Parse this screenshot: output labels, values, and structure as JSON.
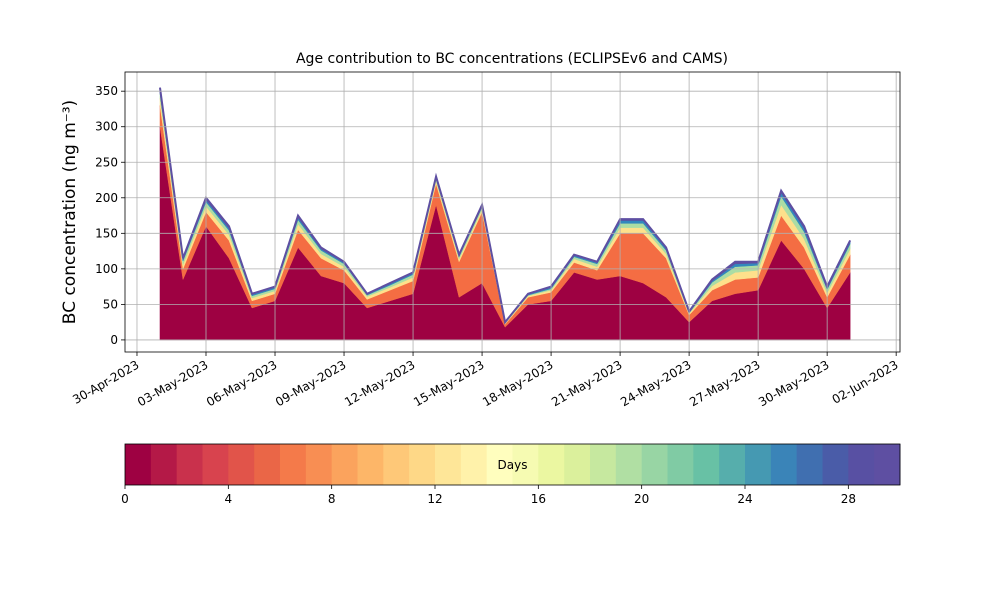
{
  "chart_data": {
    "type": "stacked_area",
    "title": "Age contribution to BC concentrations (ECLIPSEv6 and CAMS)",
    "ylabel": "BC concentration (ng m⁻³)",
    "x": [
      "2023-05-01",
      "2023-05-02",
      "2023-05-03",
      "2023-05-04",
      "2023-05-05",
      "2023-05-06",
      "2023-05-07",
      "2023-05-08",
      "2023-05-09",
      "2023-05-10",
      "2023-05-11",
      "2023-05-12",
      "2023-05-13",
      "2023-05-14",
      "2023-05-15",
      "2023-05-16",
      "2023-05-17",
      "2023-05-18",
      "2023-05-19",
      "2023-05-20",
      "2023-05-21",
      "2023-05-22",
      "2023-05-23",
      "2023-05-24",
      "2023-05-25",
      "2023-05-26",
      "2023-05-27",
      "2023-05-28",
      "2023-05-29",
      "2023-05-30",
      "2023-05-31"
    ],
    "series": [
      {
        "color": "#9e0142",
        "values": [
          300,
          85,
          160,
          115,
          45,
          55,
          130,
          90,
          80,
          45,
          55,
          65,
          190,
          60,
          80,
          18,
          50,
          55,
          95,
          85,
          90,
          80,
          60,
          25,
          55,
          65,
          70,
          140,
          100,
          45,
          95
        ]
      },
      {
        "color": "#f46d43",
        "values": [
          30,
          15,
          20,
          25,
          10,
          10,
          25,
          25,
          18,
          12,
          15,
          18,
          30,
          50,
          100,
          4,
          10,
          12,
          14,
          13,
          60,
          70,
          55,
          10,
          15,
          20,
          18,
          35,
          30,
          15,
          25
        ]
      },
      {
        "color": "#fee08b",
        "values": [
          10,
          6,
          8,
          8,
          4,
          4,
          8,
          6,
          5,
          4,
          4,
          5,
          4,
          4,
          4,
          1,
          2,
          3,
          5,
          5,
          8,
          8,
          6,
          2,
          6,
          10,
          10,
          15,
          12,
          6,
          8
        ]
      },
      {
        "color": "#abdda4",
        "values": [
          7,
          5,
          6,
          6,
          3,
          3,
          6,
          5,
          4,
          2,
          3,
          4,
          3,
          3,
          3,
          1,
          1,
          2,
          3,
          4,
          6,
          6,
          5,
          1,
          5,
          8,
          7,
          12,
          10,
          5,
          7
        ]
      },
      {
        "color": "#3288bd",
        "values": [
          4,
          2,
          3,
          3,
          2,
          2,
          3,
          2,
          2,
          1,
          2,
          2,
          2,
          2,
          2,
          1,
          1,
          2,
          2,
          2,
          4,
          4,
          3,
          1,
          2,
          4,
          3,
          5,
          5,
          2,
          3
        ]
      },
      {
        "color": "#5e4fa2",
        "values": [
          4,
          2,
          3,
          3,
          1,
          1,
          3,
          2,
          1,
          1,
          1,
          1,
          1,
          1,
          1,
          0,
          1,
          1,
          1,
          1,
          2,
          2,
          1,
          1,
          2,
          3,
          2,
          3,
          3,
          2,
          2
        ]
      }
    ],
    "xlim": [
      "2023-04-29T11:30:00Z",
      "2023-06-02T04:00:00Z"
    ],
    "xticks": [
      {
        "value": "2023-04-30",
        "label": "30-Apr-2023"
      },
      {
        "value": "2023-05-03",
        "label": "03-May-2023"
      },
      {
        "value": "2023-05-06",
        "label": "06-May-2023"
      },
      {
        "value": "2023-05-09",
        "label": "09-May-2023"
      },
      {
        "value": "2023-05-12",
        "label": "12-May-2023"
      },
      {
        "value": "2023-05-15",
        "label": "15-May-2023"
      },
      {
        "value": "2023-05-18",
        "label": "18-May-2023"
      },
      {
        "value": "2023-05-21",
        "label": "21-May-2023"
      },
      {
        "value": "2023-05-24",
        "label": "24-May-2023"
      },
      {
        "value": "2023-05-27",
        "label": "27-May-2023"
      },
      {
        "value": "2023-05-30",
        "label": "30-May-2023"
      },
      {
        "value": "2023-06-02",
        "label": "02-Jun-2023"
      }
    ],
    "ylim": [
      -17,
      377
    ],
    "yticks": [
      0,
      50,
      100,
      150,
      200,
      250,
      300,
      350
    ],
    "grid": true,
    "colorbar": {
      "label": "Days",
      "lim": [
        0,
        30
      ],
      "ticks": [
        0,
        4,
        8,
        12,
        16,
        20,
        24,
        28
      ],
      "colors": [
        "#9e0142",
        "#b41947",
        "#c9314c",
        "#d8434e",
        "#e1544a",
        "#ea6647",
        "#f47a4a",
        "#f88e53",
        "#fba35d",
        "#fdb668",
        "#fec878",
        "#fed887",
        "#fee698",
        "#fff2aa",
        "#fffebe",
        "#f6fbb2",
        "#ebf7a1",
        "#dbf09c",
        "#c6e89f",
        "#b0dfa3",
        "#98d5a4",
        "#80cba4",
        "#68c1a5",
        "#56aeac",
        "#4599b2",
        "#3a84b8",
        "#406fb0",
        "#4a5ca8",
        "#5850a3",
        "#5e4fa2"
      ]
    }
  }
}
